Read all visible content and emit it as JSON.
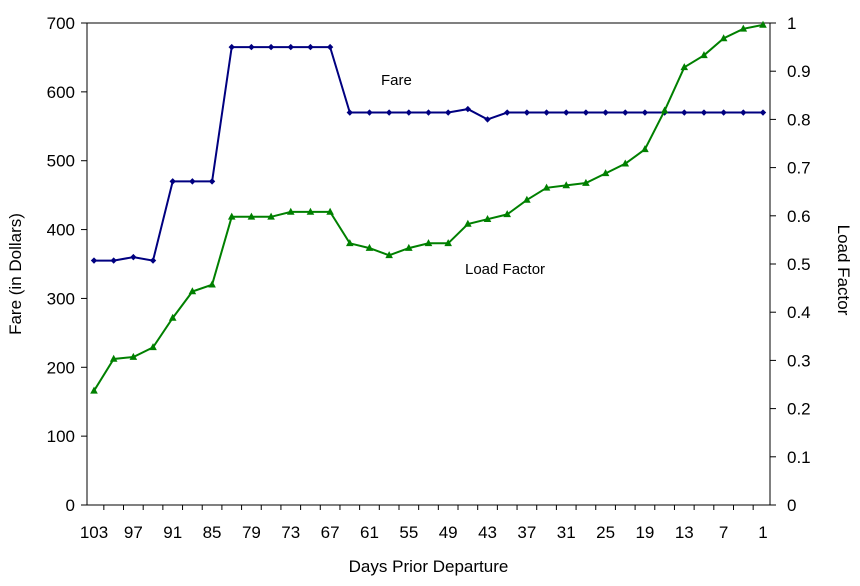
{
  "chart_data": {
    "type": "line",
    "xlabel": "Days Prior Departure",
    "ylabel_left": "Fare (in Dollars)",
    "ylabel_right": "Load Factor",
    "ylim_left": [
      0,
      700
    ],
    "ylim_right": [
      0,
      1
    ],
    "yticks_left": [
      0,
      100,
      200,
      300,
      400,
      500,
      600,
      700
    ],
    "yticks_right": [
      0,
      0.1,
      0.2,
      0.3,
      0.4,
      0.5,
      0.6,
      0.7,
      0.8,
      0.9,
      1
    ],
    "x": [
      103,
      100,
      97,
      94,
      91,
      88,
      85,
      82,
      79,
      76,
      73,
      70,
      67,
      64,
      61,
      58,
      55,
      52,
      49,
      46,
      43,
      40,
      37,
      34,
      31,
      28,
      25,
      22,
      19,
      16,
      13,
      10,
      7,
      4,
      1
    ],
    "x_tick_labels": [
      "103",
      "97",
      "91",
      "85",
      "79",
      "73",
      "67",
      "61",
      "55",
      "49",
      "43",
      "37",
      "31",
      "25",
      "19",
      "13",
      "7",
      "1"
    ],
    "x_reversed": true,
    "grid": false,
    "series": [
      {
        "name": "Fare",
        "axis": "left",
        "color": "#000080",
        "marker": "diamond",
        "values": [
          355,
          355,
          360,
          355,
          470,
          470,
          470,
          665,
          665,
          665,
          665,
          665,
          665,
          570,
          570,
          570,
          570,
          570,
          570,
          575,
          560,
          570,
          570,
          570,
          570,
          570,
          570,
          570,
          570,
          570,
          570,
          570,
          570,
          570,
          570
        ]
      },
      {
        "name": "Load Factor",
        "axis": "right",
        "color": "#008000",
        "marker": "triangle",
        "values": [
          0.237,
          0.303,
          0.307,
          0.327,
          0.388,
          0.443,
          0.457,
          0.598,
          0.598,
          0.598,
          0.608,
          0.608,
          0.608,
          0.543,
          0.533,
          0.518,
          0.533,
          0.543,
          0.543,
          0.583,
          0.593,
          0.603,
          0.633,
          0.658,
          0.663,
          0.668,
          0.688,
          0.708,
          0.738,
          0.818,
          0.908,
          0.933,
          0.968,
          0.988,
          0.996
        ]
      }
    ],
    "annotations": [
      "Fare",
      "Load Factor"
    ]
  }
}
